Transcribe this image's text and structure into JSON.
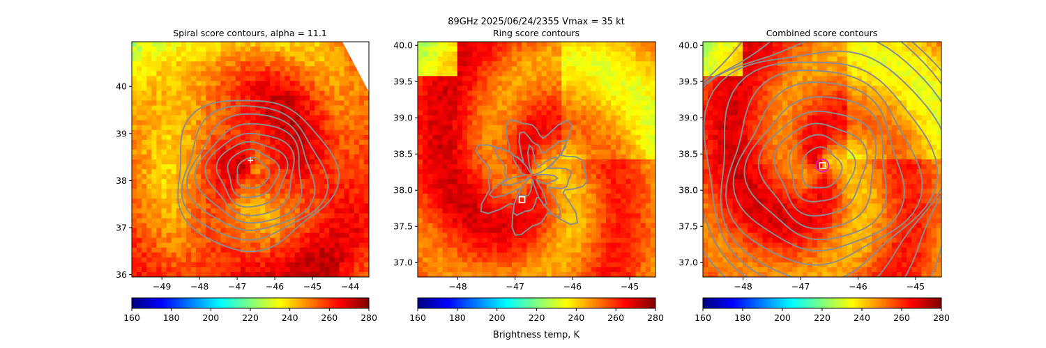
{
  "suptitle": "89GHz  2025/06/24/2355    Vmax = 35 kt",
  "colorbar_label": "Brightness temp, K",
  "colormap": "jet",
  "contour_color": "#8c8c8c",
  "chart_data": [
    {
      "type": "heatmap",
      "title": "Spiral score contours, alpha = 11.1",
      "xlim": [
        -49.8,
        -43.5
      ],
      "ylim": [
        35.95,
        40.95
      ],
      "xticks": [
        -49,
        -48,
        -47,
        -46,
        -45,
        -44
      ],
      "xtick_labels": [
        "−49",
        "−48",
        "−47",
        "−46",
        "−45",
        "−44"
      ],
      "yticks": [
        36,
        37,
        38,
        39,
        40
      ],
      "ytick_labels": [
        "36",
        "37",
        "38",
        "39",
        "40"
      ],
      "center": [
        -46.6,
        38.15
      ],
      "marker": {
        "symbol": "plus",
        "x": -46.65,
        "y": 38.43,
        "color": "#ffffff"
      },
      "colorbar": {
        "min": 160,
        "max": 280,
        "ticks": [
          160,
          180,
          200,
          220,
          240,
          260,
          280
        ],
        "tick_labels": [
          "160",
          "180",
          "200",
          "220",
          "240",
          "260",
          "280"
        ]
      }
    },
    {
      "type": "heatmap",
      "title": "Ring score contours",
      "xlim": [
        -48.7,
        -44.55
      ],
      "ylim": [
        36.8,
        40.05
      ],
      "xticks": [
        -48,
        -47,
        -46,
        -45
      ],
      "xtick_labels": [
        "−48",
        "−47",
        "−46",
        "−45"
      ],
      "yticks": [
        37.0,
        37.5,
        38.0,
        38.5,
        39.0,
        39.5,
        40.0
      ],
      "ytick_labels": [
        "37.0",
        "37.5",
        "38.0",
        "38.5",
        "39.0",
        "39.5",
        "40.0"
      ],
      "center": [
        -46.7,
        38.2
      ],
      "marker": {
        "symbol": "square",
        "x": -46.88,
        "y": 37.87,
        "color": "#ffffff"
      },
      "colorbar": {
        "min": 160,
        "max": 280,
        "ticks": [
          160,
          180,
          200,
          220,
          240,
          260,
          280
        ],
        "tick_labels": [
          "160",
          "180",
          "200",
          "220",
          "240",
          "260",
          "280"
        ]
      }
    },
    {
      "type": "heatmap",
      "title": "Combined score contours",
      "xlim": [
        -48.7,
        -44.55
      ],
      "ylim": [
        36.8,
        40.05
      ],
      "xticks": [
        -48,
        -47,
        -46,
        -45
      ],
      "xtick_labels": [
        "−48",
        "−47",
        "−46",
        "−45"
      ],
      "yticks": [
        37.0,
        37.5,
        38.0,
        38.5,
        39.0,
        39.5,
        40.0
      ],
      "ytick_labels": [
        "37.0",
        "37.5",
        "38.0",
        "38.5",
        "39.0",
        "39.5",
        "40.0"
      ],
      "center": [
        -46.65,
        38.3
      ],
      "marker": {
        "symbol": "square-circle",
        "x": -46.62,
        "y": 38.34,
        "color": "#ffffff",
        "ring_color": "#e020c0"
      },
      "colorbar": {
        "min": 160,
        "max": 280,
        "ticks": [
          160,
          180,
          200,
          220,
          240,
          260,
          280
        ],
        "tick_labels": [
          "160",
          "180",
          "200",
          "220",
          "240",
          "260",
          "280"
        ]
      }
    }
  ]
}
